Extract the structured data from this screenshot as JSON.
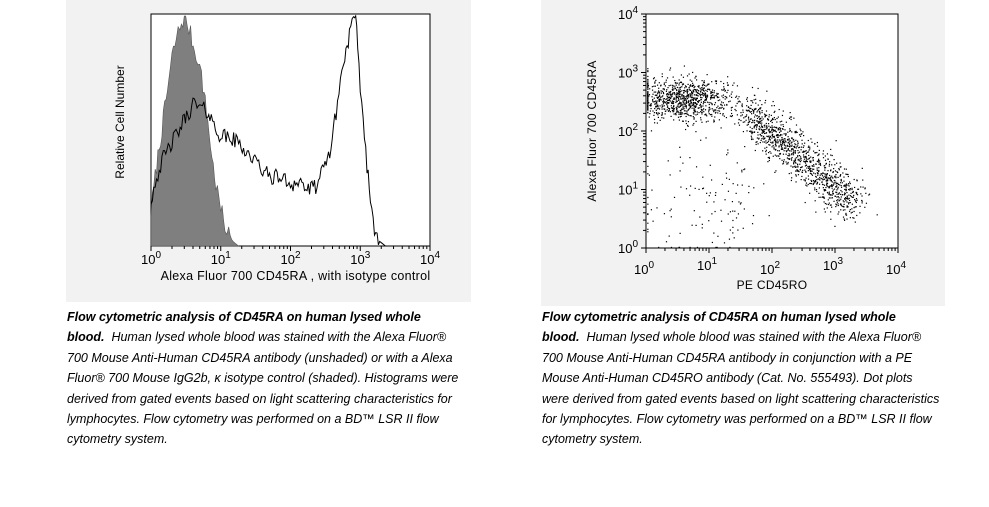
{
  "chart_data": [
    {
      "type": "histogram",
      "xlabel": "Alexa Fluor 700 CD45RA , with isotype control",
      "ylabel": "Relative Cell Number",
      "x_scale": "log",
      "xlim": [
        1,
        10000
      ],
      "x_tick_labels": [
        {
          "base": "10",
          "exp": "0"
        },
        {
          "base": "10",
          "exp": "1"
        },
        {
          "base": "10",
          "exp": "2"
        },
        {
          "base": "10",
          "exp": "3"
        },
        {
          "base": "10",
          "exp": "4"
        }
      ],
      "series": [
        {
          "style": "shaded",
          "color": "#7f7f7f",
          "x": [
            1.0,
            1.2,
            1.5,
            1.8,
            2.0,
            2.3,
            2.6,
            3.0,
            3.3,
            3.7,
            4.2,
            4.7,
            5.3,
            6.0,
            6.8,
            7.5,
            8.5,
            10.0,
            11.5,
            13.0,
            15.0,
            18.0
          ],
          "y": [
            0.15,
            0.35,
            0.55,
            0.72,
            0.82,
            0.9,
            0.95,
            1.0,
            0.97,
            0.92,
            0.85,
            0.82,
            0.74,
            0.62,
            0.5,
            0.38,
            0.27,
            0.16,
            0.09,
            0.05,
            0.02,
            0.0
          ]
        },
        {
          "style": "unshaded",
          "color": "#000000",
          "x": [
            1.0,
            1.2,
            1.5,
            2.0,
            2.5,
            3.0,
            3.5,
            4.0,
            5.0,
            6.0,
            7.0,
            8.0,
            10.0,
            13.0,
            18.0,
            25.0,
            35.0,
            50.0,
            70.0,
            100.0,
            140.0,
            180.0,
            230.0,
            300.0,
            380.0,
            450.0,
            520.0,
            600.0,
            700.0,
            800.0,
            860.0,
            920.0,
            1000.0,
            1100.0,
            1250.0,
            1400.0,
            1600.0,
            1900.0,
            2300.0
          ],
          "y": [
            0.2,
            0.3,
            0.38,
            0.45,
            0.5,
            0.55,
            0.58,
            0.62,
            0.6,
            0.59,
            0.57,
            0.52,
            0.48,
            0.47,
            0.45,
            0.4,
            0.35,
            0.3,
            0.3,
            0.27,
            0.28,
            0.24,
            0.26,
            0.33,
            0.43,
            0.58,
            0.72,
            0.82,
            0.92,
            0.98,
            1.0,
            0.85,
            0.7,
            0.55,
            0.35,
            0.2,
            0.08,
            0.02,
            0.0
          ]
        }
      ]
    },
    {
      "type": "scatter",
      "xlabel": "PE CD45RO",
      "ylabel": "Alexa Fluor 700 CD45RA",
      "x_scale": "log",
      "y_scale": "log",
      "xlim": [
        1,
        10000
      ],
      "ylim": [
        1,
        10000
      ],
      "x_tick_labels": [
        {
          "base": "10",
          "exp": "0"
        },
        {
          "base": "10",
          "exp": "1"
        },
        {
          "base": "10",
          "exp": "2"
        },
        {
          "base": "10",
          "exp": "3"
        },
        {
          "base": "10",
          "exp": "4"
        }
      ],
      "y_tick_labels": [
        {
          "base": "10",
          "exp": "0"
        },
        {
          "base": "10",
          "exp": "1"
        },
        {
          "base": "10",
          "exp": "2"
        },
        {
          "base": "10",
          "exp": "3"
        },
        {
          "base": "10",
          "exp": "4"
        }
      ],
      "point_color": "#000000",
      "populations": [
        {
          "x_log_center": 0.6,
          "y_log_center": 2.55,
          "x_log_spread": 0.4,
          "y_log_spread": 0.18,
          "count": 900
        },
        {
          "x_log_center": 2.7,
          "y_log_center": 1.5,
          "x_log_spread": 0.35,
          "y_log_spread": 0.35,
          "count": 1100
        },
        {
          "x_log_center": 1.0,
          "y_log_center": 0.7,
          "x_log_spread": 0.6,
          "y_log_spread": 0.5,
          "count": 120
        }
      ]
    }
  ],
  "captions": {
    "left": {
      "bold": "Flow cytometric analysis of CD45RA on human lysed whole blood.",
      "body": "Human lysed whole blood was stained with the Alexa Fluor® 700 Mouse Anti-Human CD45RA antibody (unshaded) or with a Alexa Fluor® 700 Mouse IgG2b, κ isotype control (shaded). Histograms were derived from gated events based on light scattering characteristics for lymphocytes. Flow cytometry was performed on a BD™ LSR II flow cytometry system."
    },
    "right": {
      "bold": "Flow cytometric analysis of CD45RA on human lysed whole blood.",
      "body": "Human lysed whole blood was stained with the Alexa Fluor® 700 Mouse Anti-Human CD45RA antibody in conjunction with a PE Mouse Anti-Human CD45RO antibody (Cat. No. 555493). Dot plots were derived from gated events based on light scattering characteristics for lymphocytes. Flow cytometry was performed on a BD™ LSR II flow cytometry system."
    }
  }
}
